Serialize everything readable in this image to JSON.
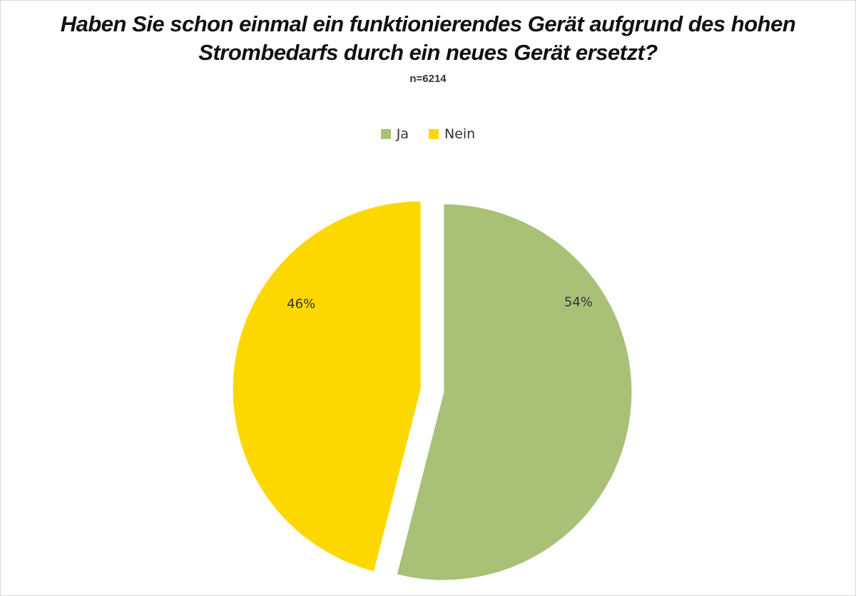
{
  "chart_data": {
    "type": "pie",
    "title_lines": [
      "Haben Sie schon einmal ein funktionierendes Gerät aufgrund des hohen",
      "Strombedarfs durch ein neues Gerät ersetzt?"
    ],
    "subtitle": "n=6214",
    "categories": [
      "Ja",
      "Nein"
    ],
    "values": [
      54,
      46
    ],
    "data_labels": [
      "54%",
      "46%"
    ],
    "colors": [
      "#a9c077",
      "#fdd800"
    ],
    "legend": {
      "position": "top",
      "entries": [
        "Ja",
        "Nein"
      ]
    },
    "exploded": true
  }
}
